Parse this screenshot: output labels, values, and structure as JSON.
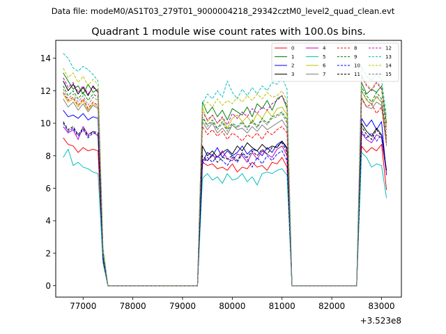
{
  "figure": {
    "suptitle": "Data file: modeM0/AS1T03_279T01_9000004218_29342cztM0_level2_quad_clean.evt"
  },
  "chart_data": {
    "type": "line",
    "title": "Quadrant 1 module wise count rates with 100.0s bins.",
    "xlabel": "",
    "ylabel": "",
    "x_offset_label": "+3.523e8",
    "xlim": [
      76450,
      83400
    ],
    "ylim": [
      -0.7,
      15.1
    ],
    "x_ticks": [
      77000,
      78000,
      79000,
      80000,
      81000,
      82000,
      83000
    ],
    "x_tick_labels": [
      "77000",
      "78000",
      "79000",
      "80000",
      "81000",
      "82000",
      "83000"
    ],
    "y_ticks": [
      0,
      2,
      4,
      6,
      8,
      10,
      12,
      14
    ],
    "y_tick_labels": [
      "0",
      "2",
      "4",
      "6",
      "8",
      "10",
      "12",
      "14"
    ],
    "grid": false,
    "legend": {
      "placement": "top-right",
      "columns": 4
    },
    "x": [
      76600,
      76700,
      76800,
      76900,
      77000,
      77100,
      77200,
      77300,
      77400,
      77500,
      77600,
      77700,
      77800,
      77900,
      78000,
      78100,
      78200,
      78300,
      78400,
      78500,
      78600,
      78700,
      78800,
      78900,
      79000,
      79100,
      79200,
      79300,
      79400,
      79500,
      79600,
      79700,
      79800,
      79900,
      80000,
      80100,
      80200,
      80300,
      80400,
      80500,
      80600,
      80700,
      80800,
      80900,
      81000,
      81100,
      81200,
      81300,
      81400,
      81500,
      81600,
      81700,
      81800,
      81900,
      82000,
      82100,
      82200,
      82300,
      82400,
      82500,
      82600,
      82700,
      82800,
      82900,
      83000,
      83100
    ],
    "series": [
      {
        "name": "0",
        "color": "#ff0000",
        "dash": "solid",
        "values": [
          9.1,
          8.7,
          8.6,
          8.2,
          8.5,
          8.3,
          8.4,
          8.3,
          1.5,
          0,
          0,
          0,
          0,
          0,
          0,
          0,
          0,
          0,
          0,
          0,
          0,
          0,
          0,
          0,
          0,
          0,
          0,
          0,
          7.6,
          7.4,
          7.5,
          7.2,
          7.3,
          7.1,
          7.5,
          7.0,
          7.3,
          7.2,
          7.6,
          7.3,
          7.4,
          7.1,
          7.6,
          7.5,
          7.9,
          7.3,
          0,
          0,
          0,
          0,
          0,
          0,
          0,
          0,
          0,
          0,
          0,
          0,
          0,
          0,
          8.6,
          8.2,
          8.5,
          8.3,
          8.7,
          5.9
        ]
      },
      {
        "name": "1",
        "color": "#008000",
        "dash": "solid",
        "values": [
          13.1,
          12.6,
          12.1,
          12.3,
          11.8,
          12.4,
          11.9,
          12.1,
          2.2,
          0,
          0,
          0,
          0,
          0,
          0,
          0,
          0,
          0,
          0,
          0,
          0,
          0,
          0,
          0,
          0,
          0,
          0,
          0,
          11.3,
          10.6,
          11.0,
          10.4,
          10.8,
          10.2,
          10.9,
          10.7,
          10.5,
          11.0,
          10.4,
          11.2,
          10.9,
          11.4,
          10.8,
          11.5,
          11.7,
          10.9,
          0,
          0,
          0,
          0,
          0,
          0,
          0,
          0,
          0,
          0,
          0,
          0,
          0,
          0,
          12.5,
          11.8,
          12.1,
          11.9,
          12.3,
          10.0
        ]
      },
      {
        "name": "2",
        "color": "#0000ff",
        "dash": "solid",
        "values": [
          10.8,
          10.4,
          10.5,
          10.3,
          10.6,
          10.2,
          10.4,
          10.3,
          1.8,
          0,
          0,
          0,
          0,
          0,
          0,
          0,
          0,
          0,
          0,
          0,
          0,
          0,
          0,
          0,
          0,
          0,
          0,
          0,
          7.6,
          8.2,
          8.0,
          8.5,
          7.9,
          8.3,
          8.0,
          8.2,
          8.6,
          8.1,
          8.4,
          8.3,
          8.0,
          8.5,
          8.2,
          8.7,
          8.9,
          8.4,
          0,
          0,
          0,
          0,
          0,
          0,
          0,
          0,
          0,
          0,
          0,
          0,
          0,
          0,
          10.3,
          9.8,
          10.2,
          9.6,
          10.1,
          6.8
        ]
      },
      {
        "name": "3",
        "color": "#000000",
        "dash": "solid",
        "values": [
          12.6,
          12.0,
          12.4,
          11.8,
          12.2,
          11.7,
          12.3,
          11.9,
          2.0,
          0,
          0,
          0,
          0,
          0,
          0,
          0,
          0,
          0,
          0,
          0,
          0,
          0,
          0,
          0,
          0,
          0,
          0,
          0,
          8.6,
          8.0,
          8.3,
          7.9,
          8.2,
          8.4,
          8.1,
          8.6,
          8.3,
          8.8,
          8.5,
          8.3,
          8.7,
          8.4,
          8.6,
          8.5,
          8.9,
          8.5,
          0,
          0,
          0,
          0,
          0,
          0,
          0,
          0,
          0,
          0,
          0,
          0,
          0,
          0,
          10.0,
          9.5,
          9.2,
          9.7,
          9.3,
          7.1
        ]
      },
      {
        "name": "4",
        "color": "#bf00bf",
        "dash": "solid",
        "values": [
          9.8,
          9.4,
          9.6,
          9.0,
          9.8,
          9.3,
          9.5,
          9.2,
          1.7,
          0,
          0,
          0,
          0,
          0,
          0,
          0,
          0,
          0,
          0,
          0,
          0,
          0,
          0,
          0,
          0,
          0,
          0,
          0,
          7.8,
          7.7,
          8.0,
          7.9,
          8.3,
          7.8,
          7.7,
          8.1,
          8.0,
          7.6,
          8.2,
          7.8,
          8.3,
          8.1,
          7.9,
          8.4,
          8.6,
          8.0,
          0,
          0,
          0,
          0,
          0,
          0,
          0,
          0,
          0,
          0,
          0,
          0,
          0,
          0,
          9.4,
          9.0,
          8.8,
          9.3,
          9.1,
          6.9
        ]
      },
      {
        "name": "5",
        "color": "#00bfbf",
        "dash": "solid",
        "values": [
          7.9,
          8.4,
          7.4,
          7.6,
          7.3,
          7.2,
          7.0,
          6.9,
          1.4,
          0,
          0,
          0,
          0,
          0,
          0,
          0,
          0,
          0,
          0,
          0,
          0,
          0,
          0,
          0,
          0,
          0,
          0,
          0,
          6.6,
          6.9,
          6.5,
          6.7,
          6.3,
          6.9,
          6.5,
          6.6,
          6.9,
          6.4,
          6.7,
          6.2,
          6.9,
          7.0,
          6.9,
          7.1,
          7.2,
          6.8,
          0,
          0,
          0,
          0,
          0,
          0,
          0,
          0,
          0,
          0,
          0,
          0,
          0,
          0,
          8.2,
          7.9,
          7.3,
          7.5,
          7.4,
          5.4
        ]
      },
      {
        "name": "6",
        "color": "#bfbf00",
        "dash": "solid",
        "values": [
          11.8,
          11.3,
          11.5,
          11.0,
          11.4,
          10.8,
          11.2,
          11.0,
          1.9,
          0,
          0,
          0,
          0,
          0,
          0,
          0,
          0,
          0,
          0,
          0,
          0,
          0,
          0,
          0,
          0,
          0,
          0,
          0,
          11.0,
          10.1,
          10.5,
          10.0,
          10.3,
          9.7,
          10.3,
          10.5,
          10.1,
          10.4,
          10.0,
          10.6,
          10.3,
          10.8,
          10.4,
          10.9,
          11.0,
          10.5,
          0,
          0,
          0,
          0,
          0,
          0,
          0,
          0,
          0,
          0,
          0,
          0,
          0,
          0,
          12.0,
          11.4,
          11.2,
          11.6,
          11.3,
          8.9
        ]
      },
      {
        "name": "7",
        "color": "#808080",
        "dash": "solid",
        "values": [
          11.5,
          11.0,
          11.3,
          10.8,
          11.2,
          10.7,
          11.1,
          10.9,
          1.9,
          0,
          0,
          0,
          0,
          0,
          0,
          0,
          0,
          0,
          0,
          0,
          0,
          0,
          0,
          0,
          0,
          0,
          0,
          0,
          10.1,
          9.6,
          10.0,
          9.4,
          9.7,
          9.3,
          9.9,
          9.6,
          9.7,
          9.4,
          9.8,
          9.5,
          9.9,
          9.6,
          9.8,
          10.0,
          10.2,
          9.7,
          0,
          0,
          0,
          0,
          0,
          0,
          0,
          0,
          0,
          0,
          0,
          0,
          0,
          0,
          11.6,
          11.0,
          10.9,
          11.3,
          11.1,
          8.6
        ]
      },
      {
        "name": "8",
        "color": "#ff0000",
        "dash": "dashed",
        "values": [
          11.9,
          11.4,
          11.6,
          11.1,
          11.5,
          10.9,
          11.3,
          11.1,
          2.0,
          0,
          0,
          0,
          0,
          0,
          0,
          0,
          0,
          0,
          0,
          0,
          0,
          0,
          0,
          0,
          0,
          0,
          0,
          0,
          9.8,
          9.3,
          9.6,
          9.2,
          9.5,
          9.0,
          9.4,
          9.2,
          8.9,
          9.3,
          9.1,
          9.4,
          9.0,
          9.5,
          9.3,
          9.6,
          9.8,
          9.4,
          0,
          0,
          0,
          0,
          0,
          0,
          0,
          0,
          0,
          0,
          0,
          0,
          0,
          0,
          11.5,
          11.0,
          11.2,
          10.6,
          11.0,
          8.8
        ]
      },
      {
        "name": "9",
        "color": "#008000",
        "dash": "dashed",
        "values": [
          12.3,
          11.7,
          12.0,
          11.5,
          11.9,
          11.4,
          11.8,
          11.6,
          2.1,
          0,
          0,
          0,
          0,
          0,
          0,
          0,
          0,
          0,
          0,
          0,
          0,
          0,
          0,
          0,
          0,
          0,
          0,
          0,
          10.4,
          9.9,
          10.2,
          9.7,
          10.1,
          9.6,
          10.0,
          9.8,
          10.1,
          9.7,
          10.2,
          9.8,
          10.3,
          10.0,
          10.4,
          10.5,
          10.7,
          10.2,
          0,
          0,
          0,
          0,
          0,
          0,
          0,
          0,
          0,
          0,
          0,
          0,
          0,
          0,
          12.2,
          11.7,
          11.3,
          11.9,
          11.5,
          9.2
        ]
      },
      {
        "name": "10",
        "color": "#0000ff",
        "dash": "dashed",
        "values": [
          10.0,
          9.5,
          9.7,
          9.2,
          9.6,
          9.1,
          9.4,
          9.3,
          1.7,
          0,
          0,
          0,
          0,
          0,
          0,
          0,
          0,
          0,
          0,
          0,
          0,
          0,
          0,
          0,
          0,
          0,
          0,
          0,
          7.5,
          7.9,
          7.6,
          8.0,
          7.7,
          7.4,
          7.9,
          7.6,
          8.1,
          7.8,
          7.3,
          7.9,
          7.5,
          8.0,
          7.7,
          8.1,
          8.3,
          7.7,
          0,
          0,
          0,
          0,
          0,
          0,
          0,
          0,
          0,
          0,
          0,
          0,
          0,
          0,
          9.5,
          9.1,
          9.4,
          8.9,
          9.3,
          7.0
        ]
      },
      {
        "name": "11",
        "color": "#000000",
        "dash": "dashed",
        "values": [
          10.1,
          9.6,
          9.8,
          9.3,
          9.7,
          9.2,
          9.5,
          9.4,
          1.7,
          0,
          0,
          0,
          0,
          0,
          0,
          0,
          0,
          0,
          0,
          0,
          0,
          0,
          0,
          0,
          0,
          0,
          0,
          0,
          8.0,
          7.7,
          8.1,
          7.6,
          7.9,
          7.8,
          8.0,
          7.7,
          8.2,
          7.9,
          8.3,
          8.0,
          8.4,
          8.1,
          8.5,
          8.6,
          8.8,
          8.2,
          0,
          0,
          0,
          0,
          0,
          0,
          0,
          0,
          0,
          0,
          0,
          0,
          0,
          0,
          9.8,
          9.3,
          9.0,
          9.6,
          9.2,
          7.1
        ]
      },
      {
        "name": "12",
        "color": "#bf00bf",
        "dash": "dashed",
        "values": [
          12.8,
          12.2,
          12.5,
          11.9,
          12.3,
          11.8,
          12.2,
          11.9,
          2.1,
          0,
          0,
          0,
          0,
          0,
          0,
          0,
          0,
          0,
          0,
          0,
          0,
          0,
          0,
          0,
          0,
          0,
          0,
          0,
          10.7,
          10.2,
          10.5,
          10.0,
          10.4,
          9.9,
          10.6,
          10.3,
          10.7,
          10.4,
          10.9,
          10.6,
          11.0,
          10.8,
          11.2,
          11.4,
          11.7,
          11.1,
          0,
          0,
          0,
          0,
          0,
          0,
          0,
          0,
          0,
          0,
          0,
          0,
          0,
          0,
          12.9,
          12.3,
          12.0,
          12.5,
          12.1,
          9.6
        ]
      },
      {
        "name": "13",
        "color": "#00bfbf",
        "dash": "dashed",
        "values": [
          14.3,
          14.0,
          13.4,
          13.2,
          13.5,
          13.3,
          13.0,
          12.6,
          2.4,
          0,
          0,
          0,
          0,
          0,
          0,
          0,
          0,
          0,
          0,
          0,
          0,
          0,
          0,
          0,
          0,
          0,
          0,
          0,
          11.2,
          11.8,
          11.5,
          12.0,
          11.6,
          12.6,
          11.9,
          11.5,
          12.1,
          11.7,
          12.2,
          11.8,
          12.3,
          12.0,
          12.5,
          12.4,
          12.8,
          12.1,
          0,
          0,
          0,
          0,
          0,
          0,
          0,
          0,
          0,
          0,
          0,
          0,
          0,
          0,
          13.5,
          12.9,
          12.6,
          13.1,
          12.7,
          10.4
        ]
      },
      {
        "name": "14",
        "color": "#bfbf00",
        "dash": "dashed",
        "values": [
          13.4,
          12.8,
          13.1,
          12.5,
          12.9,
          12.3,
          12.7,
          12.4,
          2.2,
          0,
          0,
          0,
          0,
          0,
          0,
          0,
          0,
          0,
          0,
          0,
          0,
          0,
          0,
          0,
          0,
          0,
          0,
          0,
          10.9,
          11.3,
          11.0,
          11.5,
          11.1,
          11.4,
          11.2,
          11.6,
          11.3,
          11.7,
          11.4,
          11.8,
          11.5,
          11.9,
          11.6,
          11.7,
          12.0,
          11.4,
          0,
          0,
          0,
          0,
          0,
          0,
          0,
          0,
          0,
          0,
          0,
          0,
          0,
          0,
          13.0,
          12.4,
          12.1,
          12.6,
          12.2,
          9.8
        ]
      },
      {
        "name": "15",
        "color": "#808080",
        "dash": "dashed",
        "values": [
          12.1,
          11.5,
          11.8,
          11.3,
          11.7,
          11.1,
          11.6,
          11.4,
          2.0,
          0,
          0,
          0,
          0,
          0,
          0,
          0,
          0,
          0,
          0,
          0,
          0,
          0,
          0,
          0,
          0,
          0,
          0,
          0,
          10.3,
          9.8,
          10.1,
          9.6,
          10.0,
          9.5,
          9.9,
          9.7,
          10.0,
          9.6,
          10.1,
          9.7,
          10.2,
          9.9,
          10.3,
          10.4,
          10.6,
          10.0,
          0,
          0,
          0,
          0,
          0,
          0,
          0,
          0,
          0,
          0,
          0,
          0,
          0,
          0,
          12.0,
          11.5,
          11.1,
          11.7,
          11.3,
          9.0
        ]
      }
    ]
  }
}
